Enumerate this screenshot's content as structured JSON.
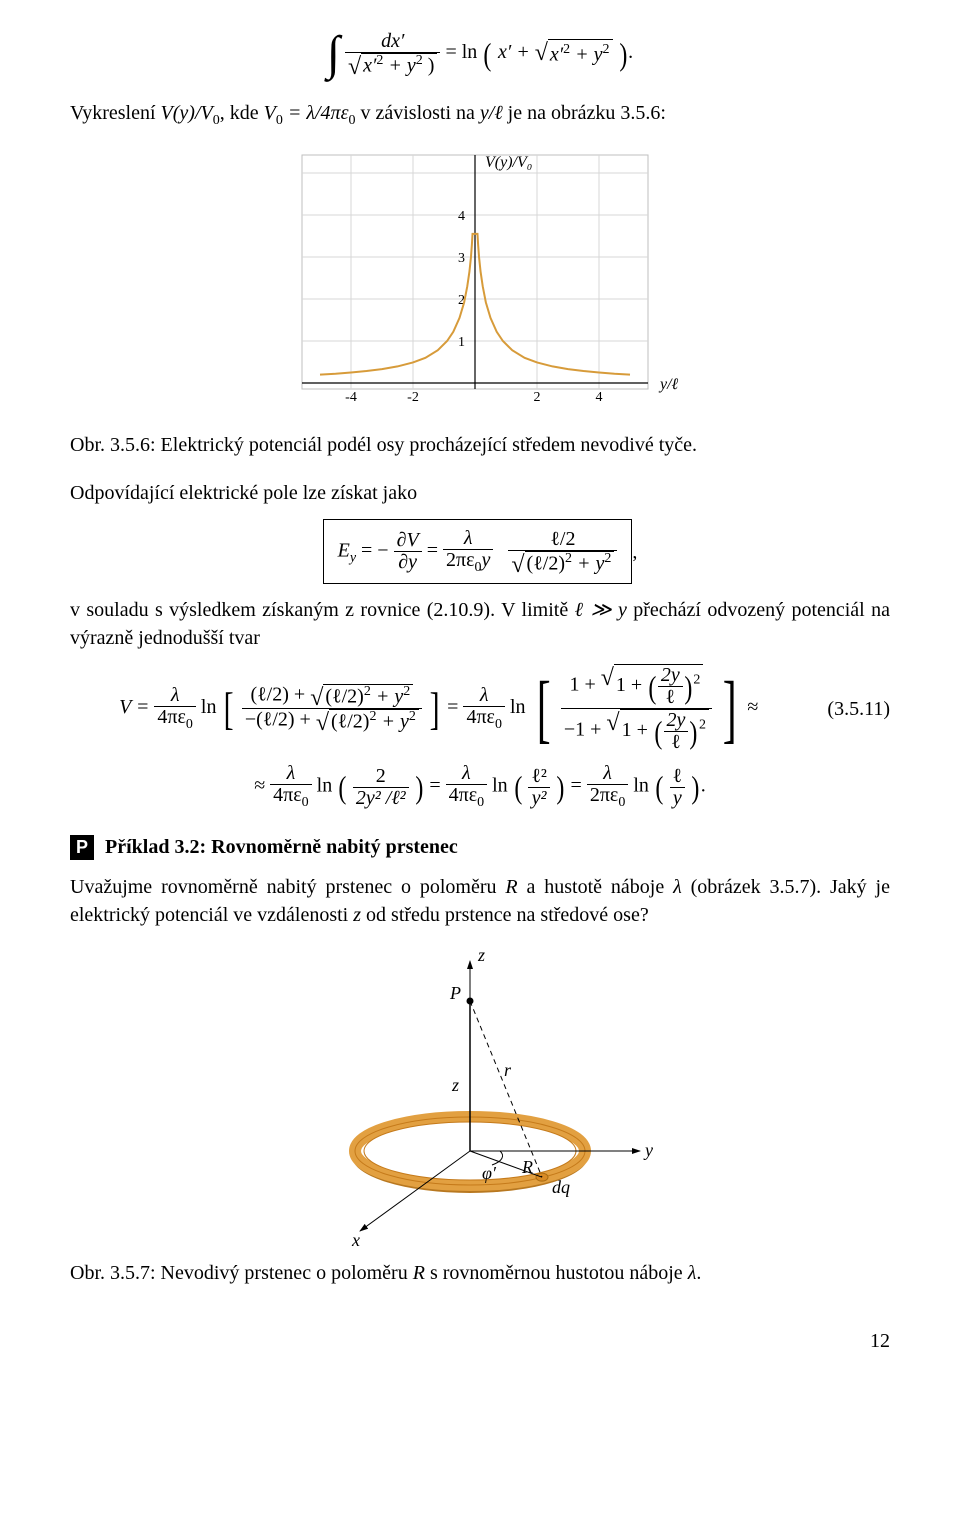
{
  "eq_top": {
    "lhs_int": "∫",
    "lhs_num": "dx′",
    "lhs_den_pre": "x′",
    "lhs_den_sq": "2",
    "lhs_den_plus": " + y",
    "lhs_den_sq2": "2",
    "lhs_den_close": " )",
    "mid": " = ln",
    "rhs_pre": "x′ + ",
    "rhs_rad_a": "x′",
    "rhs_rad_sq": "2",
    "rhs_rad_plus": " + y",
    "rhs_rad_sq2": "2",
    "tail": "."
  },
  "para1": {
    "a": "Vykreslení ",
    "vyv0": "V(y)/V",
    "sub0a": "0",
    "b": ", kde ",
    "v0eq": "V",
    "sub0b": "0",
    "eqlam": " = λ/4πε",
    "sub0c": "0",
    "c": " v závislosti na ",
    "yl": "y/ℓ",
    "d": " je na obrázku 3.5.6:"
  },
  "chart1": {
    "type": "line",
    "xlabel": "y/ℓ",
    "ylabel": "V(y)/V₀",
    "xlim": [
      -5,
      5
    ],
    "ylim": [
      0,
      5
    ],
    "xticks": [
      -4,
      -2,
      2,
      4
    ],
    "yticks": [
      1,
      2,
      3,
      4
    ],
    "curve_color": "#d79b3a",
    "curve_width": 2,
    "grid_color": "#d7d7d7",
    "axis_color": "#000000",
    "background": "#ffffff",
    "label_fontsize": 16,
    "tick_fontsize": 14,
    "frame_color": "#bfbfbf",
    "data_x": [
      -5,
      -4.5,
      -4,
      -3.5,
      -3,
      -2.5,
      -2,
      -1.6,
      -1.2,
      -0.9,
      -0.7,
      -0.5,
      -0.35,
      -0.25,
      -0.18,
      -0.13,
      -0.1,
      -0.08,
      0.08,
      0.1,
      0.13,
      0.18,
      0.25,
      0.35,
      0.5,
      0.7,
      0.9,
      1.2,
      1.6,
      2,
      2.5,
      3,
      3.5,
      4,
      4.5,
      5
    ],
    "data_y": [
      0.2,
      0.22,
      0.25,
      0.285,
      0.33,
      0.395,
      0.49,
      0.6,
      0.78,
      1.0,
      1.22,
      1.55,
      1.92,
      2.3,
      2.65,
      3.0,
      3.3,
      3.55,
      3.55,
      3.3,
      3.0,
      2.65,
      2.3,
      1.92,
      1.55,
      1.22,
      1.0,
      0.78,
      0.6,
      0.49,
      0.395,
      0.33,
      0.285,
      0.25,
      0.22,
      0.2
    ]
  },
  "caption1": "Obr. 3.5.6: Elektrický potenciál podél osy procházející středem nevodivé tyče.",
  "para2": "Odpovídající elektrické pole lze získat jako",
  "eq_box": {
    "E": "E",
    "y": "y",
    "eq": " = −",
    "dV": "∂V",
    "dy": "∂y",
    "eq2": " = ",
    "lam": "λ",
    "den1a": "2πε",
    "den1b": "0",
    "den1c": "y",
    "num2": "ℓ/2",
    "den2rad_a": "(ℓ/2)",
    "den2rad_sq": "2",
    "den2rad_plus": " + y",
    "den2rad_sq2": "2",
    "comma": " ,"
  },
  "para3": {
    "a": "v souladu s výsledkem získaným z rovnice (2.10.9). V limitě ",
    "b": "ℓ ≫ y",
    "c": " přechází odvozený potenciál na výrazně jednodušší tvar"
  },
  "eq_main": {
    "V": "V = ",
    "lam": "λ",
    "fpe": "4πε",
    "z0": "0",
    "ln": "ln",
    "br1_num_a": "(ℓ/2) + ",
    "br1_rad": "(ℓ/2)",
    "sq": "2",
    "plus_y": " + y",
    "br1_den_a": "−(ℓ/2) + ",
    "eq": " = ",
    "one_plus": "1 + ",
    "one_plus_inner": "1 + ",
    "twoY": "2y",
    "ell": "ℓ",
    "neg_one_plus": "−1 + ",
    "approx": " ≈",
    "eqnum": "(3.5.11)",
    "line2_a": "≈ ",
    "two": "2",
    "two_y2_l2": "2y² /ℓ²",
    "l2": "ℓ²",
    "y2": "y²",
    "two_pe": "2πε",
    "ell_over_y": "ℓ",
    "y_single": "y",
    "dot": "."
  },
  "heading": "Příklad 3.2: Rovnoměrně nabitý prstenec",
  "para4": {
    "a": "Uvažujme rovnoměrně nabitý prstenec o poloměru ",
    "R": "R",
    "b": " a hustotě náboje ",
    "lam": "λ",
    "c": " (obrázek 3.5.7). Jaký je elektrický potenciál ve vzdálenosti ",
    "z": "z",
    "d": " od středu prstence na středové ose?"
  },
  "ring_diagram": {
    "type": "infographic",
    "ring_fill": "#e2a041",
    "ring_stroke": "#c57a1a",
    "ring_shadow": "#b87820",
    "axis_color": "#000000",
    "background": "#ffffff",
    "labels": {
      "z_axis": "z",
      "P": "P",
      "r": "r",
      "z_seg": "z",
      "y_axis": "y",
      "x_axis": "x",
      "phi": "φ′",
      "R": "R",
      "dq": "dq"
    },
    "label_fontsize": 18
  },
  "caption2": {
    "a": "Obr. 3.5.7: Nevodivý prstenec o poloměru ",
    "R": "R",
    "b": " s rovnoměrnou hustotou náboje ",
    "lam": "λ",
    "c": "."
  },
  "pagenum": "12"
}
